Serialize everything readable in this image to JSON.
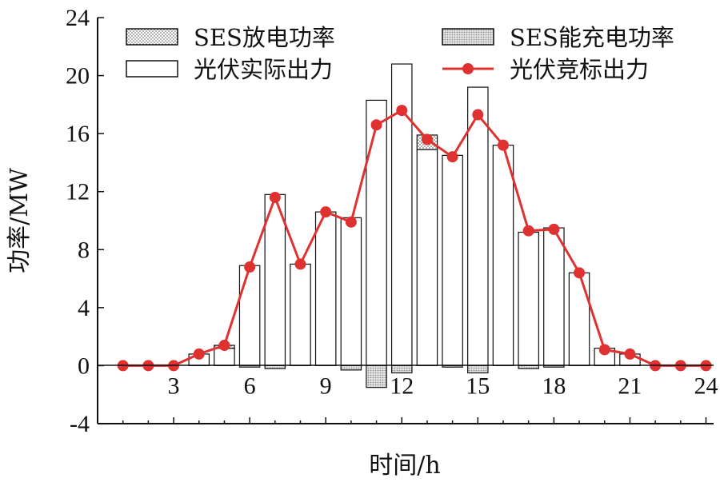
{
  "chart_data": {
    "type": "bar",
    "xlabel": "时间/h",
    "ylabel": "功率/MW",
    "x": [
      1,
      2,
      3,
      4,
      5,
      6,
      7,
      8,
      9,
      10,
      11,
      12,
      13,
      14,
      15,
      16,
      17,
      18,
      19,
      20,
      21,
      22,
      23,
      24
    ],
    "xticks": [
      "3",
      "6",
      "9",
      "12",
      "15",
      "18",
      "21",
      "24"
    ],
    "xlim": [
      0,
      24.3
    ],
    "ylim": [
      -4,
      24
    ],
    "yticks": [
      "-4",
      "0",
      "4",
      "8",
      "12",
      "16",
      "20",
      "24"
    ],
    "grid": false,
    "legend": {
      "placement": "top",
      "entries": [
        {
          "label": "SES放电功率",
          "kind": "bar-dots"
        },
        {
          "label": "SES能充电功率",
          "kind": "bar-hatch"
        },
        {
          "label": "光伏实际出力",
          "kind": "bar-white"
        },
        {
          "label": "光伏竞标出力",
          "kind": "line-marker"
        }
      ]
    },
    "series": [
      {
        "name": "光伏实际出力",
        "values": [
          0,
          0,
          0,
          0.8,
          1.2,
          6.9,
          11.8,
          7.0,
          10.6,
          10.2,
          18.3,
          20.8,
          14.9,
          14.5,
          19.2,
          15.2,
          9.2,
          9.5,
          6.4,
          1.2,
          0.8,
          0,
          0,
          0
        ]
      },
      {
        "name": "SES放电功率",
        "values": [
          0,
          0,
          0,
          0,
          0.2,
          0,
          0,
          0,
          0,
          0,
          0,
          0,
          1.0,
          0,
          0,
          0,
          0,
          0,
          0,
          0,
          0,
          0,
          0,
          0
        ]
      },
      {
        "name": "SES能充电功率",
        "values": [
          0,
          0,
          0,
          0,
          0,
          -0.1,
          -0.2,
          0,
          0,
          -0.3,
          -1.5,
          -0.5,
          0,
          -0.1,
          -0.5,
          0,
          -0.2,
          -0.1,
          0,
          0,
          0,
          0,
          0,
          0
        ]
      },
      {
        "name": "光伏竞标出力",
        "values": [
          0,
          0,
          0,
          0.8,
          1.4,
          6.8,
          11.6,
          7.0,
          10.6,
          9.9,
          16.6,
          17.6,
          15.6,
          14.4,
          17.3,
          15.2,
          9.3,
          9.4,
          6.4,
          1.1,
          0.8,
          0,
          0,
          0
        ]
      }
    ],
    "colors": {
      "line": "#e03131",
      "bar_stroke": "#111111",
      "bar_fill": "#ffffff",
      "dots": "#555555"
    }
  }
}
